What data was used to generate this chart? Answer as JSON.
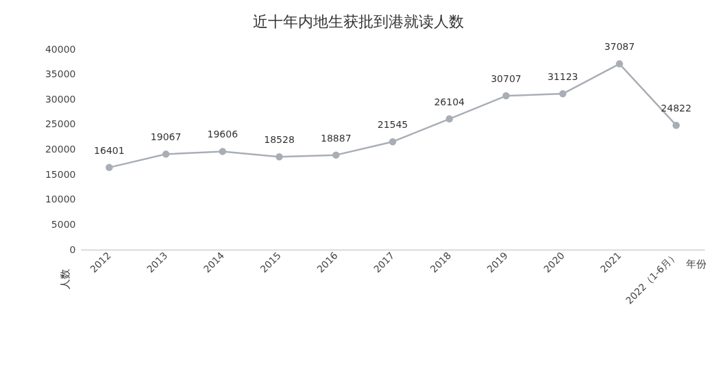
{
  "chart_data": {
    "type": "line",
    "title": "近十年内地生获批到港就读人数",
    "xlabel": "年份",
    "ylabel": "人数",
    "categories": [
      "2012",
      "2013",
      "2014",
      "2015",
      "2016",
      "2017",
      "2018",
      "2019",
      "2020",
      "2021",
      "2022（1-6月）"
    ],
    "series": [
      {
        "color": "#a9aeb6",
        "values": [
          16401,
          19067,
          19606,
          18528,
          18887,
          21545,
          26104,
          30707,
          31123,
          37087,
          24822
        ]
      }
    ],
    "ylim": [
      0,
      40000
    ],
    "yticks": [
      0,
      5000,
      10000,
      15000,
      20000,
      25000,
      30000,
      35000,
      40000
    ],
    "grid": false,
    "marker": "circle",
    "line_style": "solid",
    "data_labels": true
  }
}
